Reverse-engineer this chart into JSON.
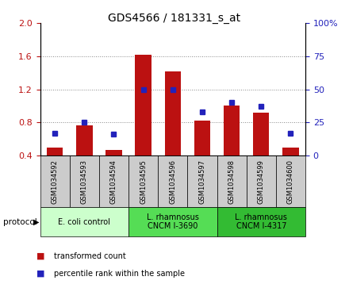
{
  "title": "GDS4566 / 181331_s_at",
  "samples": [
    "GSM1034592",
    "GSM1034593",
    "GSM1034594",
    "GSM1034595",
    "GSM1034596",
    "GSM1034597",
    "GSM1034598",
    "GSM1034599",
    "GSM1034600"
  ],
  "transformed_counts": [
    0.5,
    0.76,
    0.47,
    1.62,
    1.42,
    0.82,
    1.0,
    0.92,
    0.5
  ],
  "percentile_ranks": [
    17,
    25,
    16,
    50,
    50,
    33,
    40,
    37,
    17
  ],
  "ylim_left": [
    0.4,
    2.0
  ],
  "ylim_right": [
    0,
    100
  ],
  "yticks_left": [
    0.4,
    0.8,
    1.2,
    1.6,
    2.0
  ],
  "yticks_right": [
    0,
    25,
    50,
    75,
    100
  ],
  "bar_color": "#bb1111",
  "dot_color": "#2222bb",
  "grid_color": "#888888",
  "protocol_groups": [
    {
      "label": "E. coli control",
      "start": 0,
      "end": 3,
      "color": "#ccffcc"
    },
    {
      "label": "L. rhamnosus\nCNCM I-3690",
      "start": 3,
      "end": 6,
      "color": "#55dd55"
    },
    {
      "label": "L. rhamnosus\nCNCM I-4317",
      "start": 6,
      "end": 9,
      "color": "#33bb33"
    }
  ],
  "sample_bg_color": "#cccccc",
  "legend_items": [
    {
      "label": "transformed count",
      "color": "#bb1111"
    },
    {
      "label": "percentile rank within the sample",
      "color": "#2222bb"
    }
  ],
  "title_fontsize": 10,
  "tick_fontsize": 8,
  "sample_fontsize": 6,
  "legend_fontsize": 7
}
